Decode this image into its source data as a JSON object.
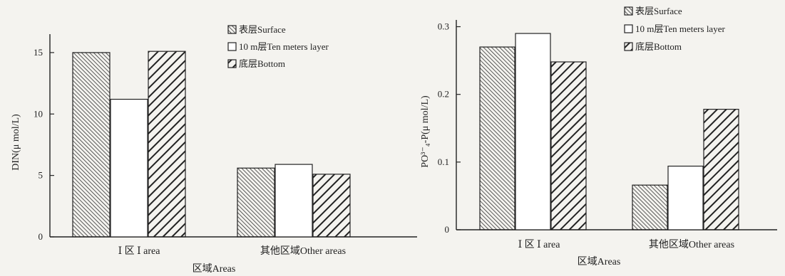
{
  "chart_data": [
    {
      "type": "bar",
      "categories": [
        "Ⅰ 区 Ⅰ area",
        "其他区域Other areas"
      ],
      "series": [
        {
          "name": "表层Surface",
          "values": [
            15.0,
            5.6
          ]
        },
        {
          "name": "10 m层Ten meters layer",
          "values": [
            11.2,
            5.9
          ]
        },
        {
          "name": "底层Bottom",
          "values": [
            15.1,
            5.1
          ]
        }
      ],
      "ylabel": "DIN(μ mol/L)",
      "xlabel": "区域Areas",
      "yticks": [
        0,
        5,
        10,
        15
      ],
      "ylim": [
        0,
        16.5
      ],
      "legend_position": "top-right",
      "colors": {
        "axis": "#222222",
        "fill": "#ffffff",
        "hatch": "#222222"
      }
    },
    {
      "type": "bar",
      "categories": [
        "Ⅰ 区 Ⅰ area",
        "其他区域Other areas"
      ],
      "series": [
        {
          "name": "表层Surface",
          "values": [
            0.27,
            0.066
          ]
        },
        {
          "name": "10 m层Ten meters layer",
          "values": [
            0.29,
            0.094
          ]
        },
        {
          "name": "底层Bottom",
          "values": [
            0.248,
            0.178
          ]
        }
      ],
      "ylabel": "PO³⁻₄-P(μ mol/L)",
      "xlabel": "区域Areas",
      "yticks": [
        0,
        0.1,
        0.2,
        0.3
      ],
      "ylim": [
        0,
        0.31
      ],
      "legend_position": "top-right",
      "colors": {
        "axis": "#222222",
        "fill": "#ffffff",
        "hatch": "#222222"
      }
    }
  ]
}
